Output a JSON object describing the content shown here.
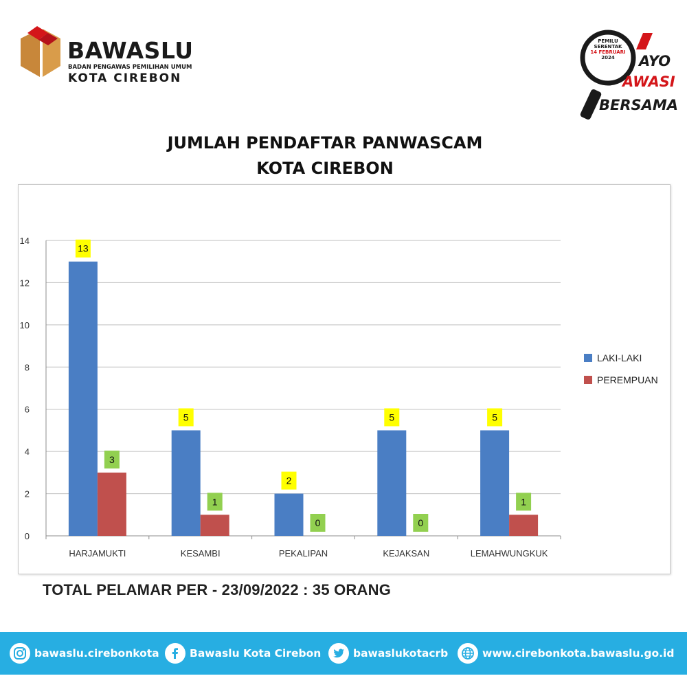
{
  "header": {
    "brand_name": "BAWASLU",
    "brand_subtitle": "BADAN PENGAWAS PEMILIHAN UMUM",
    "brand_city": "KOTA CIREBON",
    "badge": {
      "line1": "PEMILU",
      "line2": "SERENTAK",
      "line3": "14 FEBRUARI",
      "line4": "2024",
      "tag1": "AYO",
      "tag2": "AWASI",
      "tag3": "BERSAMA"
    }
  },
  "title_line1": "JUMLAH PENDAFTAR PANWASCAM",
  "title_line2": "KOTA CIREBON",
  "total_text": "TOTAL PELAMAR PER - 23/09/2022 : 35 ORANG",
  "colors": {
    "laki": "#4a7ec4",
    "perempuan": "#c0504d",
    "label_yellow": "#ffff00",
    "label_green": "#92d050",
    "footer": "#27aee2"
  },
  "chart_data": {
    "type": "bar",
    "categories": [
      "HARJAMUKTI",
      "KESAMBI",
      "PEKALIPAN",
      "KEJAKSAN",
      "LEMAHWUNGKUK"
    ],
    "series": [
      {
        "name": "LAKI-LAKI",
        "values": [
          13,
          5,
          2,
          5,
          5
        ]
      },
      {
        "name": "PEREMPUAN",
        "values": [
          3,
          1,
          0,
          0,
          1
        ]
      }
    ],
    "ylim": [
      0,
      14
    ],
    "yticks": [
      0,
      2,
      4,
      6,
      8,
      10,
      12,
      14
    ],
    "grid": true,
    "legend": "right"
  },
  "footer": {
    "instagram": "bawaslu.cirebonkota",
    "facebook": "Bawaslu Kota Cirebon",
    "twitter": "bawaslukotacrb",
    "website": "www.cirebonkota.bawaslu.go.id"
  },
  "icons": [
    "bawaslu-logo-icon",
    "magnifier-badge-icon",
    "instagram-icon",
    "facebook-icon",
    "twitter-icon",
    "globe-icon"
  ]
}
